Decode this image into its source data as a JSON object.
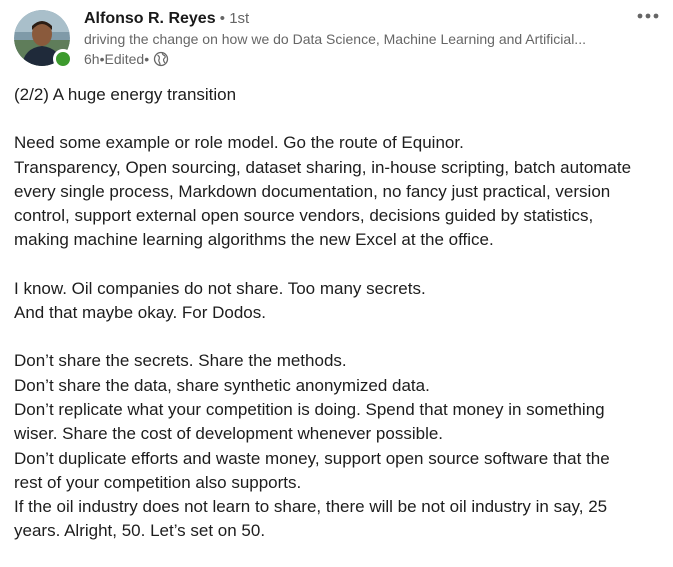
{
  "author": {
    "name": "Alfonso R. Reyes",
    "separator": " • ",
    "connection_degree": "1st",
    "headline": "driving the change on how we do Data Science, Machine Learning and Artificial...",
    "time_ago": "6h",
    "edited_label": "Edited",
    "visibility_icon": "globe-icon",
    "presence_color": "#3d9a2d"
  },
  "post": {
    "paragraph_1": [
      "(2/2) A huge energy transition"
    ],
    "paragraph_2": [
      "Need some example or role model. Go the route of Equinor.",
      "Transparency, Open sourcing, dataset sharing, in-house scripting, batch automate",
      "every single process, Markdown documentation, no fancy just practical, version",
      "control, support external open source vendors, decisions guided by statistics,",
      "making machine learning algorithms the new Excel at the office."
    ],
    "paragraph_3": [
      "I know. Oil companies do not share. Too many secrets.",
      "And that maybe okay. For Dodos."
    ],
    "paragraph_4": [
      "Don’t share the secrets. Share the methods.",
      "Don’t share the data, share synthetic anonymized data.",
      "Don’t replicate what your competition is doing. Spend that money in something",
      "wiser. Share the cost of development whenever possible.",
      "Don’t duplicate efforts and waste money, support open source software that the",
      "rest of your competition also supports.",
      "If the oil industry does not learn to share, there will be not oil industry in say, 25",
      "years. Alright, 50. Let’s set on 50."
    ]
  }
}
